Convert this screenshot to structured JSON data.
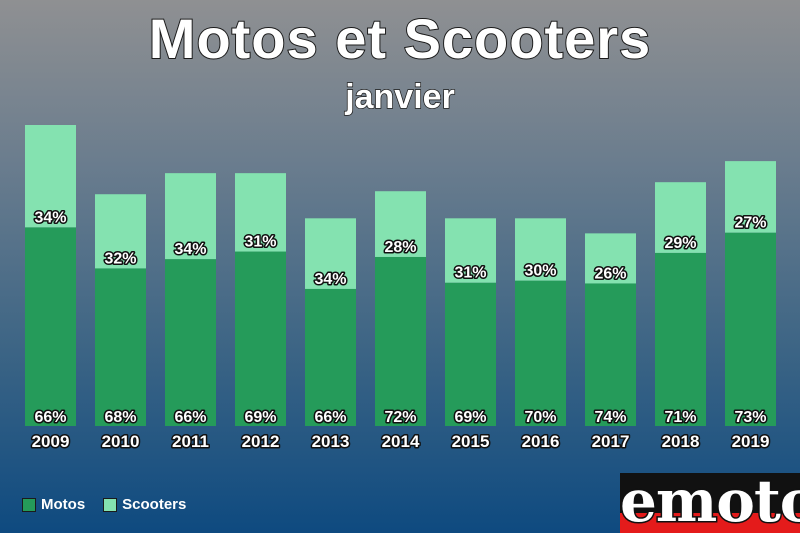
{
  "chart_data": {
    "type": "bar",
    "stacked": true,
    "title": "Motos et Scooters",
    "subtitle": "janvier",
    "categories": [
      "2009",
      "2010",
      "2011",
      "2012",
      "2013",
      "2014",
      "2015",
      "2016",
      "2017",
      "2018",
      "2019"
    ],
    "series": [
      {
        "name": "Motos",
        "color": "#259b5a",
        "values": [
          66,
          68,
          66,
          69,
          66,
          72,
          69,
          70,
          74,
          71,
          73
        ]
      },
      {
        "name": "Scooters",
        "color": "#84e2b0",
        "values": [
          34,
          32,
          34,
          31,
          34,
          28,
          31,
          30,
          26,
          29,
          27
        ]
      }
    ],
    "relative_totals": [
      1.0,
      0.77,
      0.84,
      0.84,
      0.69,
      0.78,
      0.69,
      0.69,
      0.64,
      0.81,
      0.88
    ],
    "legend_position": "bottom-left",
    "grid": false
  },
  "legend": [
    {
      "label": "Motos",
      "color": "#259b5a"
    },
    {
      "label": "Scooters",
      "color": "#84e2b0"
    }
  ],
  "logo": {
    "text": "emoto"
  }
}
